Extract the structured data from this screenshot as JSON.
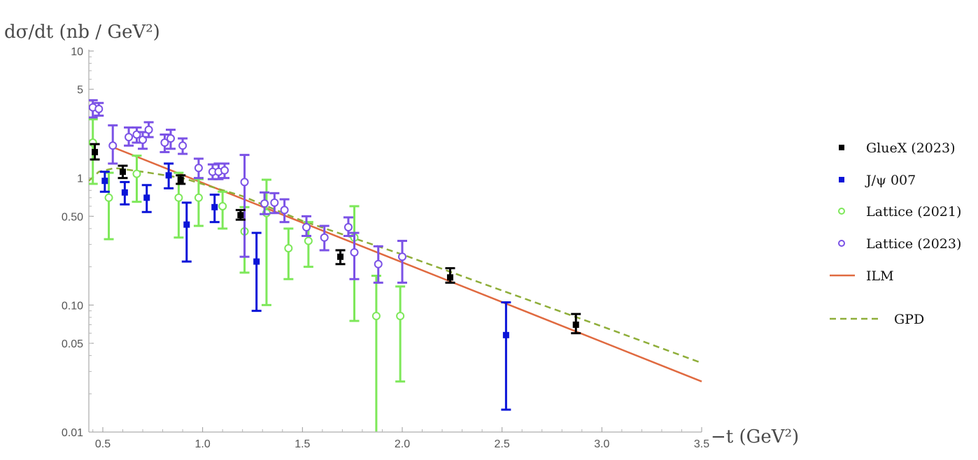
{
  "chart_data": {
    "type": "scatter",
    "title": "",
    "ylabel": "dσ/dt (nb / GeV²)",
    "xlabel": "−t (GeV²)",
    "y_scale": "log",
    "xlim": [
      0.43,
      3.5
    ],
    "ylim": [
      0.01,
      10
    ],
    "x_ticks": [
      0.5,
      1.0,
      1.5,
      2.0,
      2.5,
      3.0,
      3.5
    ],
    "x_tick_labels": [
      "0.5",
      "1.0",
      "1.5",
      "2.0",
      "2.5",
      "3.0",
      "3.5"
    ],
    "y_ticks": [
      0.01,
      0.05,
      0.1,
      0.5,
      1,
      5,
      10
    ],
    "y_tick_labels": [
      "0.01",
      "0.05",
      "0.10",
      "0.50",
      "1",
      "5",
      "10"
    ],
    "grid": false,
    "legend_position": "right",
    "series": [
      {
        "name": "GlueX (2023)",
        "marker": "square",
        "color": "#000000",
        "points": [
          {
            "x": 0.46,
            "y": 1.6,
            "lo": 1.4,
            "hi": 1.85
          },
          {
            "x": 0.6,
            "y": 1.12,
            "lo": 1.0,
            "hi": 1.25
          },
          {
            "x": 0.89,
            "y": 0.97,
            "lo": 0.9,
            "hi": 1.05
          },
          {
            "x": 1.19,
            "y": 0.51,
            "lo": 0.47,
            "hi": 0.56
          },
          {
            "x": 1.69,
            "y": 0.24,
            "lo": 0.21,
            "hi": 0.27
          },
          {
            "x": 2.24,
            "y": 0.165,
            "lo": 0.15,
            "hi": 0.195
          },
          {
            "x": 2.87,
            "y": 0.07,
            "lo": 0.06,
            "hi": 0.085
          }
        ]
      },
      {
        "name": "J/ψ 007",
        "marker": "square",
        "color": "#0a14d8",
        "points": [
          {
            "x": 0.51,
            "y": 0.95,
            "lo": 0.78,
            "hi": 1.12
          },
          {
            "x": 0.61,
            "y": 0.77,
            "lo": 0.62,
            "hi": 0.93
          },
          {
            "x": 0.72,
            "y": 0.7,
            "lo": 0.54,
            "hi": 0.88
          },
          {
            "x": 0.83,
            "y": 1.05,
            "lo": 0.83,
            "hi": 1.3
          },
          {
            "x": 0.92,
            "y": 0.43,
            "lo": 0.22,
            "hi": 0.64
          },
          {
            "x": 1.06,
            "y": 0.59,
            "lo": 0.45,
            "hi": 0.74
          },
          {
            "x": 1.27,
            "y": 0.22,
            "lo": 0.09,
            "hi": 0.37
          },
          {
            "x": 2.52,
            "y": 0.058,
            "lo": 0.015,
            "hi": 0.105
          }
        ]
      },
      {
        "name": "Lattice (2021)",
        "marker": "open-circle",
        "color": "#7ee85a",
        "points": [
          {
            "x": 0.45,
            "y": 1.9,
            "lo": 0.9,
            "hi": 2.9
          },
          {
            "x": 0.53,
            "y": 0.7,
            "lo": 0.33,
            "hi": 1.1
          },
          {
            "x": 0.67,
            "y": 1.08,
            "lo": 0.65,
            "hi": 1.5
          },
          {
            "x": 0.88,
            "y": 0.7,
            "lo": 0.34,
            "hi": 1.1
          },
          {
            "x": 0.98,
            "y": 0.7,
            "lo": 0.42,
            "hi": 0.98
          },
          {
            "x": 1.1,
            "y": 0.6,
            "lo": 0.4,
            "hi": 0.78
          },
          {
            "x": 1.21,
            "y": 0.38,
            "lo": 0.18,
            "hi": 0.59
          },
          {
            "x": 1.32,
            "y": 0.53,
            "lo": 0.1,
            "hi": 0.97
          },
          {
            "x": 1.43,
            "y": 0.28,
            "lo": 0.16,
            "hi": 0.4
          },
          {
            "x": 1.53,
            "y": 0.32,
            "lo": 0.2,
            "hi": 0.45
          },
          {
            "x": 1.76,
            "y": 0.34,
            "lo": 0.075,
            "hi": 0.6
          },
          {
            "x": 1.87,
            "y": 0.082,
            "lo": 0.01,
            "hi": 0.17
          },
          {
            "x": 1.99,
            "y": 0.082,
            "lo": 0.025,
            "hi": 0.14
          }
        ]
      },
      {
        "name": "Lattice (2023)",
        "marker": "open-circle",
        "color": "#7b52e6",
        "points": [
          {
            "x": 0.45,
            "y": 3.6,
            "lo": 3.0,
            "hi": 4.1
          },
          {
            "x": 0.48,
            "y": 3.5,
            "lo": 3.1,
            "hi": 3.9
          },
          {
            "x": 0.55,
            "y": 1.8,
            "lo": 1.3,
            "hi": 2.6
          },
          {
            "x": 0.63,
            "y": 2.1,
            "lo": 1.8,
            "hi": 2.5
          },
          {
            "x": 0.67,
            "y": 2.2,
            "lo": 1.9,
            "hi": 2.5
          },
          {
            "x": 0.7,
            "y": 2.0,
            "lo": 1.7,
            "hi": 2.3
          },
          {
            "x": 0.73,
            "y": 2.4,
            "lo": 2.1,
            "hi": 2.75
          },
          {
            "x": 0.81,
            "y": 1.9,
            "lo": 1.6,
            "hi": 2.2
          },
          {
            "x": 0.84,
            "y": 2.05,
            "lo": 1.7,
            "hi": 2.4
          },
          {
            "x": 0.9,
            "y": 1.8,
            "lo": 1.55,
            "hi": 2.05
          },
          {
            "x": 0.98,
            "y": 1.2,
            "lo": 1.0,
            "hi": 1.42
          },
          {
            "x": 1.05,
            "y": 1.12,
            "lo": 0.98,
            "hi": 1.28
          },
          {
            "x": 1.08,
            "y": 1.12,
            "lo": 0.98,
            "hi": 1.3
          },
          {
            "x": 1.11,
            "y": 1.15,
            "lo": 1.0,
            "hi": 1.3
          },
          {
            "x": 1.21,
            "y": 0.93,
            "lo": 0.24,
            "hi": 1.52
          },
          {
            "x": 1.31,
            "y": 0.63,
            "lo": 0.52,
            "hi": 0.77
          },
          {
            "x": 1.36,
            "y": 0.64,
            "lo": 0.53,
            "hi": 0.76
          },
          {
            "x": 1.41,
            "y": 0.56,
            "lo": 0.45,
            "hi": 0.68
          },
          {
            "x": 1.52,
            "y": 0.41,
            "lo": 0.35,
            "hi": 0.5
          },
          {
            "x": 1.61,
            "y": 0.34,
            "lo": 0.27,
            "hi": 0.42
          },
          {
            "x": 1.73,
            "y": 0.41,
            "lo": 0.35,
            "hi": 0.49
          },
          {
            "x": 1.76,
            "y": 0.26,
            "lo": 0.16,
            "hi": 0.37
          },
          {
            "x": 1.88,
            "y": 0.21,
            "lo": 0.15,
            "hi": 0.29
          },
          {
            "x": 2.0,
            "y": 0.24,
            "lo": 0.15,
            "hi": 0.32
          }
        ]
      },
      {
        "name": "ILM",
        "marker": "line",
        "color": "#e06a40",
        "points": [
          {
            "x": 0.55,
            "y": 1.75
          },
          {
            "x": 3.5,
            "y": 0.025
          }
        ]
      },
      {
        "name": "GPD",
        "marker": "dashed-line",
        "color": "#8fae3a",
        "points": [
          {
            "x": 0.43,
            "y": 0.95
          },
          {
            "x": 0.48,
            "y": 1.12
          },
          {
            "x": 0.56,
            "y": 1.2
          },
          {
            "x": 0.7,
            "y": 1.12
          },
          {
            "x": 0.9,
            "y": 1.0
          },
          {
            "x": 1.2,
            "y": 0.72
          },
          {
            "x": 1.5,
            "y": 0.46
          },
          {
            "x": 2.0,
            "y": 0.25
          },
          {
            "x": 2.5,
            "y": 0.13
          },
          {
            "x": 3.0,
            "y": 0.068
          },
          {
            "x": 3.5,
            "y": 0.035
          }
        ]
      }
    ]
  }
}
